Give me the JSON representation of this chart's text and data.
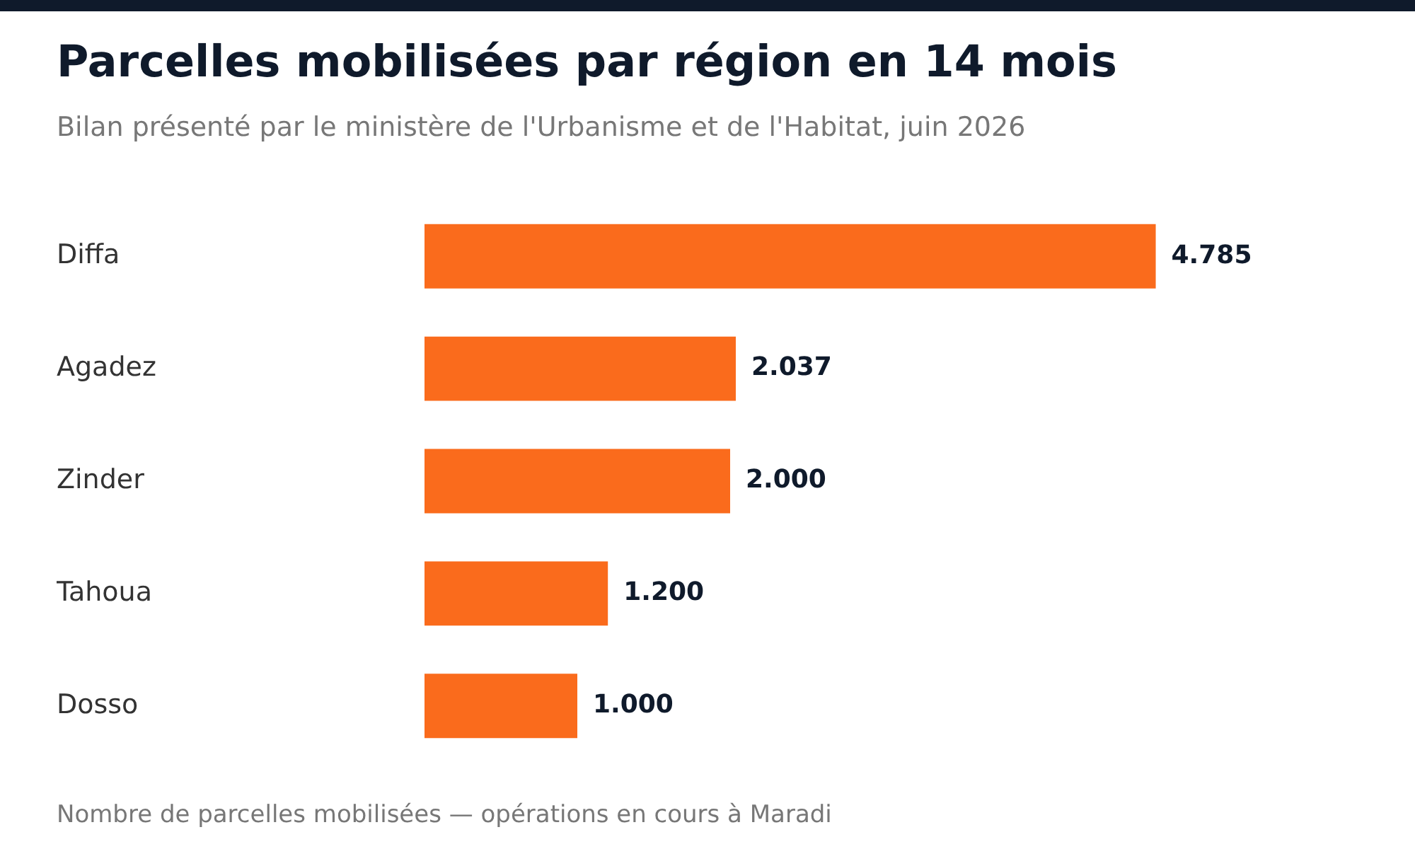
{
  "chart_data": {
    "type": "bar",
    "orientation": "horizontal",
    "title": "Parcelles mobilisées par région en 14 mois",
    "subtitle": "Bilan présenté par le ministère de l'Urbanisme et de l'Habitat, juin 2026",
    "categories": [
      "Diffa",
      "Agadez",
      "Zinder",
      "Tahoua",
      "Dosso"
    ],
    "values": [
      4785,
      2037,
      2000,
      1200,
      1000
    ],
    "value_labels": [
      "4.785",
      "2.037",
      "2.000",
      "1.200",
      "1.000"
    ],
    "color": "#fa6b1c",
    "grid": false,
    "legend": false,
    "annotations": [
      "Nombre de parcelles mobilisées — opérations en cours à Maradi"
    ]
  }
}
